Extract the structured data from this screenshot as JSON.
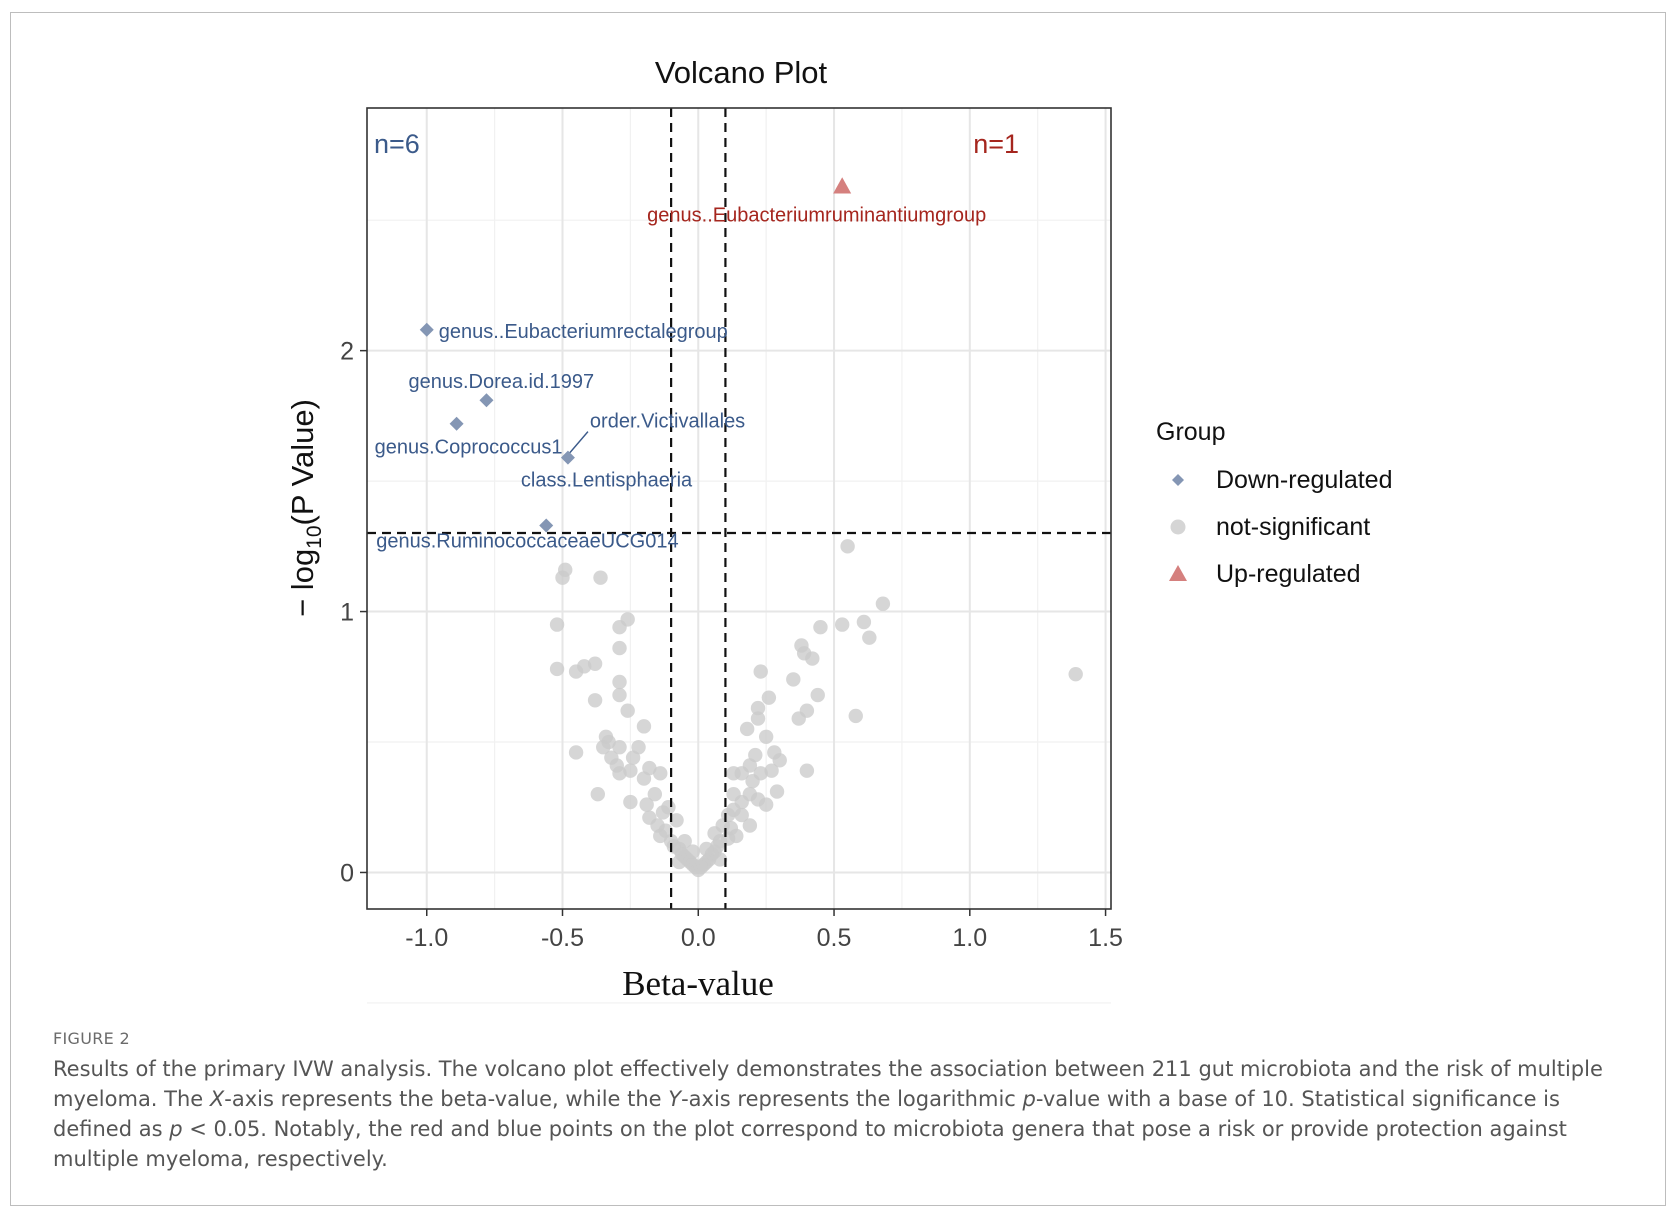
{
  "chart_data": {
    "type": "scatter",
    "title": "Volcano Plot",
    "xlabel": "Beta-value",
    "ylabel_main": "− log",
    "ylabel_sub": "10",
    "ylabel_tail": "(P Value)",
    "xlim": [
      -1.22,
      1.52
    ],
    "ylim": [
      -0.14,
      2.93
    ],
    "x_ticks": [
      -1.0,
      -0.5,
      0.0,
      0.5,
      1.0,
      1.5
    ],
    "x_tick_labels": [
      "-1.0",
      "-0.5",
      "0.0",
      "0.5",
      "1.0",
      "1.5"
    ],
    "y_ticks": [
      0,
      1,
      2
    ],
    "y_tick_labels": [
      "0",
      "1",
      "2"
    ],
    "thresholds": {
      "x": [
        -0.1,
        0.1
      ],
      "y": 1.301
    },
    "grid": true,
    "count_down": "n=6",
    "count_up": "n=1",
    "legend": {
      "title": "Group",
      "position": "right",
      "entries": [
        "Down-regulated",
        "not-significant",
        "Up-regulated"
      ]
    },
    "colors": {
      "down": "#8496b4",
      "up": "#d5807e",
      "ns": "#cbcbcb",
      "down_text": "#3b5a8a",
      "up_text": "#a5261e"
    },
    "series": [
      {
        "name": "Down-regulated",
        "marker": "diamond",
        "points": [
          {
            "x": -1.0,
            "y": 2.08,
            "label": "genus..Eubacteriumrectalegroup"
          },
          {
            "x": -0.78,
            "y": 1.81,
            "label": "genus.Dorea.id.1997"
          },
          {
            "x": -0.89,
            "y": 1.72,
            "label": "genus.Coprococcus1"
          },
          {
            "x": -0.48,
            "y": 1.59,
            "label": "order.Victivallales"
          },
          {
            "x": -0.48,
            "y": 1.59,
            "label": "class.Lentisphaeria"
          },
          {
            "x": -0.56,
            "y": 1.33,
            "label": "genus.RuminococcaceaeUCG014"
          }
        ]
      },
      {
        "name": "Up-regulated",
        "marker": "triangle",
        "points": [
          {
            "x": 0.53,
            "y": 2.63,
            "label": "genus..Eubacteriumruminantiumgroup"
          }
        ]
      },
      {
        "name": "not-significant",
        "marker": "circle",
        "points": [
          [
            0.55,
            1.25
          ],
          [
            0.68,
            1.03
          ],
          [
            0.61,
            0.96
          ],
          [
            0.53,
            0.95
          ],
          [
            0.45,
            0.94
          ],
          [
            0.63,
            0.9
          ],
          [
            0.38,
            0.87
          ],
          [
            0.39,
            0.84
          ],
          [
            0.42,
            0.82
          ],
          [
            0.23,
            0.77
          ],
          [
            0.35,
            0.74
          ],
          [
            0.26,
            0.67
          ],
          [
            0.44,
            0.68
          ],
          [
            0.4,
            0.62
          ],
          [
            0.37,
            0.59
          ],
          [
            0.58,
            0.6
          ],
          [
            0.22,
            0.63
          ],
          [
            0.22,
            0.59
          ],
          [
            0.18,
            0.55
          ],
          [
            0.25,
            0.52
          ],
          [
            1.39,
            0.76
          ],
          [
            -0.49,
            1.16
          ],
          [
            -0.5,
            1.13
          ],
          [
            -0.36,
            1.13
          ],
          [
            -0.26,
            0.97
          ],
          [
            -0.29,
            0.94
          ],
          [
            -0.52,
            0.95
          ],
          [
            -0.29,
            0.86
          ],
          [
            -0.38,
            0.8
          ],
          [
            -0.42,
            0.79
          ],
          [
            -0.45,
            0.77
          ],
          [
            -0.52,
            0.78
          ],
          [
            -0.29,
            0.73
          ],
          [
            -0.29,
            0.68
          ],
          [
            -0.38,
            0.66
          ],
          [
            -0.26,
            0.62
          ],
          [
            -0.2,
            0.56
          ],
          [
            -0.34,
            0.52
          ],
          [
            -0.33,
            0.5
          ],
          [
            -0.35,
            0.48
          ],
          [
            -0.29,
            0.48
          ],
          [
            -0.22,
            0.48
          ],
          [
            -0.45,
            0.46
          ],
          [
            -0.32,
            0.44
          ],
          [
            -0.24,
            0.44
          ],
          [
            -0.3,
            0.41
          ],
          [
            -0.18,
            0.4
          ],
          [
            -0.25,
            0.39
          ],
          [
            -0.14,
            0.38
          ],
          [
            -0.29,
            0.38
          ],
          [
            -0.2,
            0.36
          ],
          [
            -0.37,
            0.3
          ],
          [
            -0.25,
            0.27
          ],
          [
            -0.16,
            0.3
          ],
          [
            -0.19,
            0.26
          ],
          [
            -0.13,
            0.23
          ],
          [
            -0.18,
            0.21
          ],
          [
            -0.15,
            0.18
          ],
          [
            -0.12,
            0.16
          ],
          [
            -0.14,
            0.14
          ],
          [
            -0.1,
            0.12
          ],
          [
            -0.09,
            0.1
          ],
          [
            -0.07,
            0.09
          ],
          [
            -0.06,
            0.07
          ],
          [
            -0.05,
            0.06
          ],
          [
            -0.04,
            0.05
          ],
          [
            -0.03,
            0.04
          ],
          [
            -0.02,
            0.03
          ],
          [
            -0.01,
            0.02
          ],
          [
            0.0,
            0.01
          ],
          [
            -0.08,
            0.2
          ],
          [
            -0.11,
            0.25
          ],
          [
            0.21,
            0.45
          ],
          [
            0.28,
            0.46
          ],
          [
            0.3,
            0.43
          ],
          [
            0.19,
            0.41
          ],
          [
            0.23,
            0.38
          ],
          [
            0.16,
            0.38
          ],
          [
            0.13,
            0.38
          ],
          [
            0.27,
            0.39
          ],
          [
            0.4,
            0.39
          ],
          [
            0.2,
            0.35
          ],
          [
            0.29,
            0.31
          ],
          [
            0.19,
            0.3
          ],
          [
            0.13,
            0.3
          ],
          [
            0.22,
            0.28
          ],
          [
            0.16,
            0.27
          ],
          [
            0.13,
            0.24
          ],
          [
            0.25,
            0.26
          ],
          [
            0.16,
            0.22
          ],
          [
            0.19,
            0.18
          ],
          [
            0.12,
            0.17
          ],
          [
            0.14,
            0.14
          ],
          [
            0.11,
            0.13
          ],
          [
            0.08,
            0.12
          ],
          [
            0.07,
            0.1
          ],
          [
            0.06,
            0.08
          ],
          [
            0.05,
            0.07
          ],
          [
            0.04,
            0.05
          ],
          [
            0.03,
            0.04
          ],
          [
            0.02,
            0.03
          ],
          [
            0.01,
            0.02
          ],
          [
            0.09,
            0.18
          ],
          [
            0.11,
            0.22
          ],
          [
            0.06,
            0.15
          ],
          [
            0.03,
            0.09
          ],
          [
            -0.02,
            0.08
          ],
          [
            -0.05,
            0.12
          ],
          [
            0.08,
            0.05
          ],
          [
            -0.07,
            0.04
          ]
        ]
      }
    ]
  },
  "figure": {
    "label": "FIGURE 2",
    "caption_parts": [
      {
        "t": "Results of the primary IVW analysis. The volcano plot effectively demonstrates the association between 211 gut microbiota and the risk of multiple myeloma. The ",
        "i": false
      },
      {
        "t": "X",
        "i": true
      },
      {
        "t": "-axis represents the beta-value, while the ",
        "i": false
      },
      {
        "t": "Y",
        "i": true
      },
      {
        "t": "-axis represents the logarithmic ",
        "i": false
      },
      {
        "t": "p",
        "i": true
      },
      {
        "t": "-value with a base of 10. Statistical significance is defined as ",
        "i": false
      },
      {
        "t": "p",
        "i": true
      },
      {
        "t": " < 0.05. Notably, the red and blue points on the plot correspond to microbiota genera that pose a risk or provide protection against multiple myeloma, respectively.",
        "i": false
      }
    ]
  }
}
